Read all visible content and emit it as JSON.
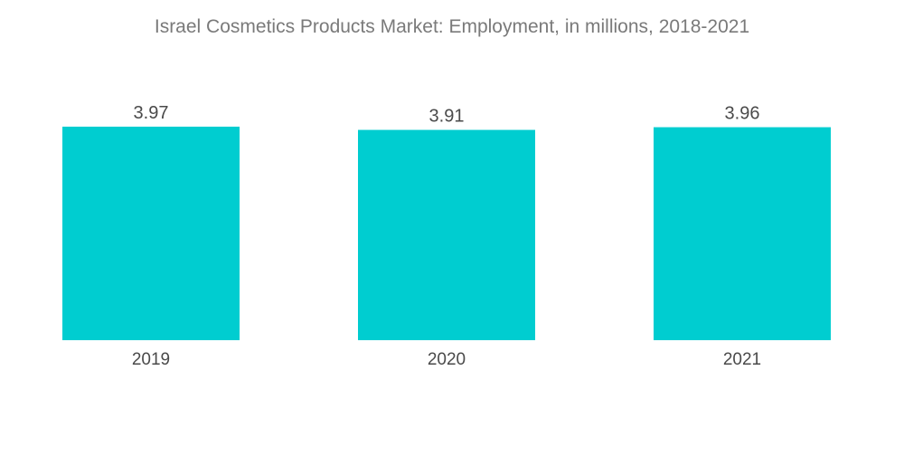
{
  "chart_data": {
    "type": "bar",
    "title": "Israel Cosmetics Products Market: Employment, in millions, 2018-2021",
    "categories": [
      "2019",
      "2020",
      "2021"
    ],
    "values": [
      3.97,
      3.91,
      3.96
    ],
    "value_labels": [
      "3.97",
      "3.91",
      "3.96"
    ],
    "xlabel": "",
    "ylabel": "",
    "ylim": [
      0,
      3.97
    ],
    "grid": false,
    "legend": "none",
    "bar_color": "#00cdd0"
  }
}
